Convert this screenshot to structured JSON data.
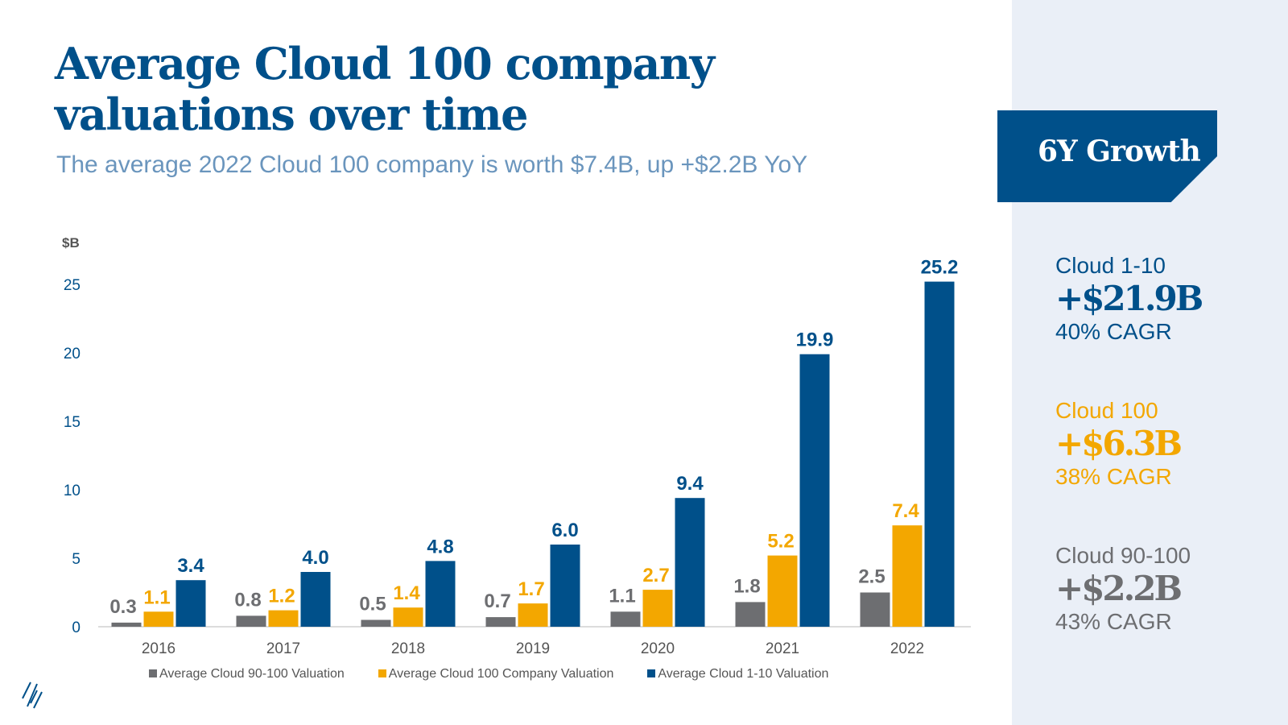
{
  "title_line1": "Average Cloud 100 company",
  "title_line2": "valuations over time",
  "subtitle": "The average 2022 Cloud 100 company is worth $7.4B, up +$2.2B YoY",
  "colors": {
    "navy": "#00508a",
    "gold": "#f3a700",
    "gray": "#6d6e71",
    "panel": "#eaeff7"
  },
  "sidebar": {
    "banner": "6Y Growth",
    "stats": [
      {
        "label": "Cloud 1-10",
        "value": "+$21.9B",
        "cagr": "40% CAGR",
        "color": "#00508a"
      },
      {
        "label": "Cloud 100",
        "value": "+$6.3B",
        "cagr": "38% CAGR",
        "color": "#f3a700"
      },
      {
        "label": "Cloud 90-100",
        "value": "+$2.2B",
        "cagr": "43% CAGR",
        "color": "#6d6e71"
      }
    ]
  },
  "chart_data": {
    "type": "bar",
    "ylabel": "$B",
    "ylim": [
      0,
      25
    ],
    "yticks": [
      "0",
      "5",
      "10",
      "15",
      "20",
      "25"
    ],
    "categories": [
      "2016",
      "2017",
      "2018",
      "2019",
      "2020",
      "2021",
      "2022"
    ],
    "series": [
      {
        "name": "Average Cloud 90-100 Valuation",
        "color": "#6d6e71",
        "values": [
          0.3,
          0.8,
          0.5,
          0.7,
          1.1,
          1.8,
          2.5
        ],
        "labels": [
          "0.3",
          "0.8",
          "0.5",
          "0.7",
          "1.1",
          "1.8",
          "2.5"
        ]
      },
      {
        "name": "Average Cloud 100 Company Valuation",
        "color": "#f3a700",
        "values": [
          1.1,
          1.2,
          1.4,
          1.7,
          2.7,
          5.2,
          7.4
        ],
        "labels": [
          "1.1",
          "1.2",
          "1.4",
          "1.7",
          "2.7",
          "5.2",
          "7.4"
        ]
      },
      {
        "name": "Average Cloud 1-10 Valuation",
        "color": "#00508a",
        "values": [
          3.4,
          4.0,
          4.8,
          6.0,
          9.4,
          19.9,
          25.2
        ],
        "labels": [
          "3.4",
          "4.0",
          "4.8",
          "6.0",
          "9.4",
          "19.9",
          "25.2"
        ]
      }
    ],
    "legend_position": "bottom"
  }
}
